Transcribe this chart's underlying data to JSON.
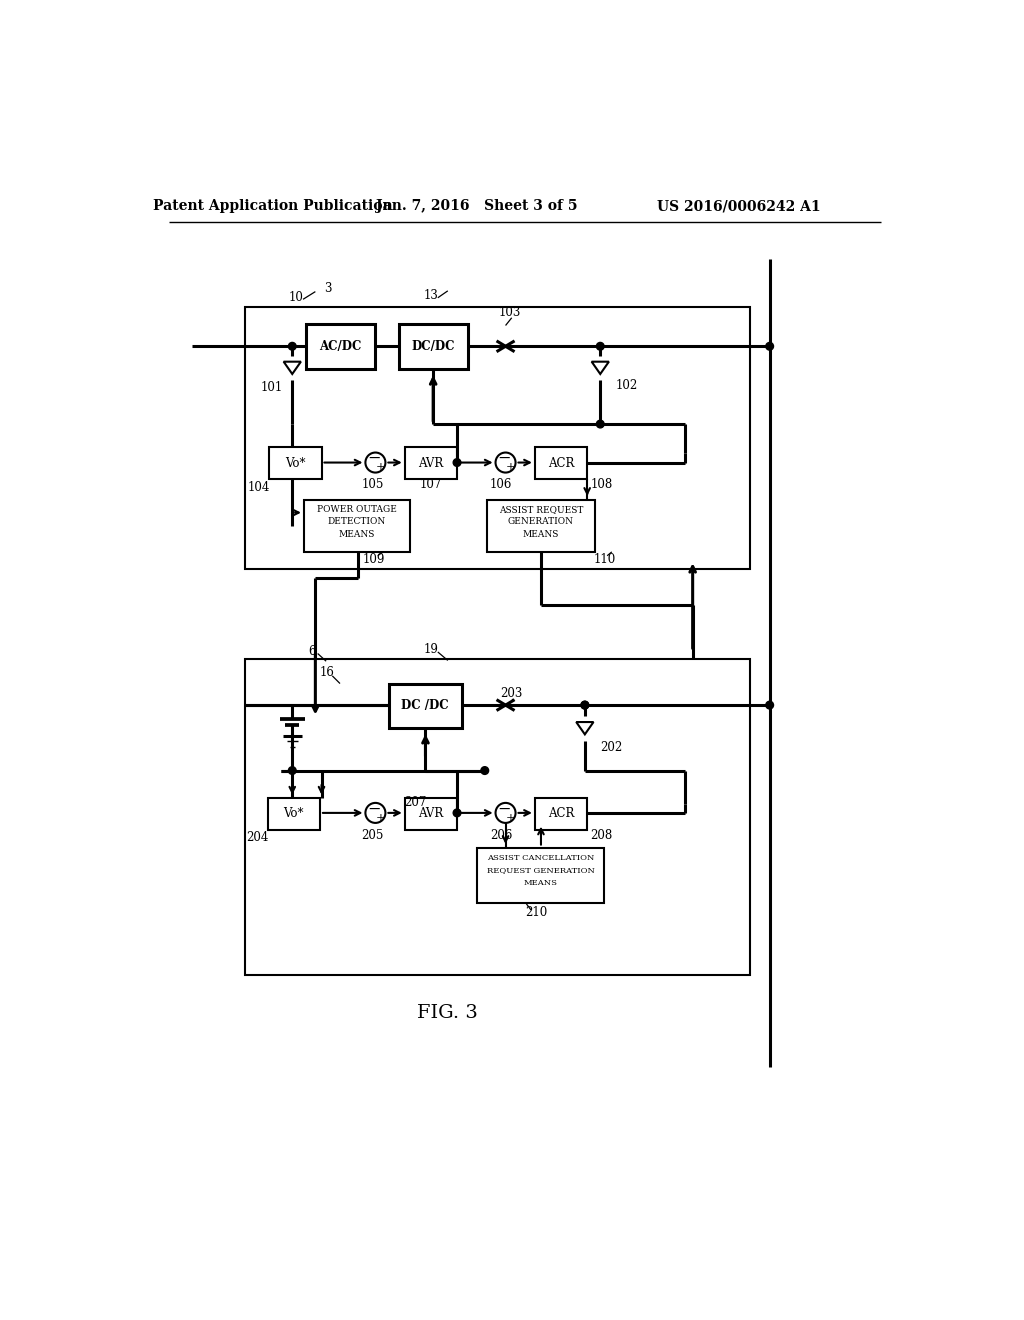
{
  "bg_color": "#ffffff",
  "header_text1": "Patent Application Publication",
  "header_text2": "Jan. 7, 2016   Sheet 3 of 5",
  "header_text3": "US 2016/0006242 A1",
  "fig_label": "FIG. 3"
}
